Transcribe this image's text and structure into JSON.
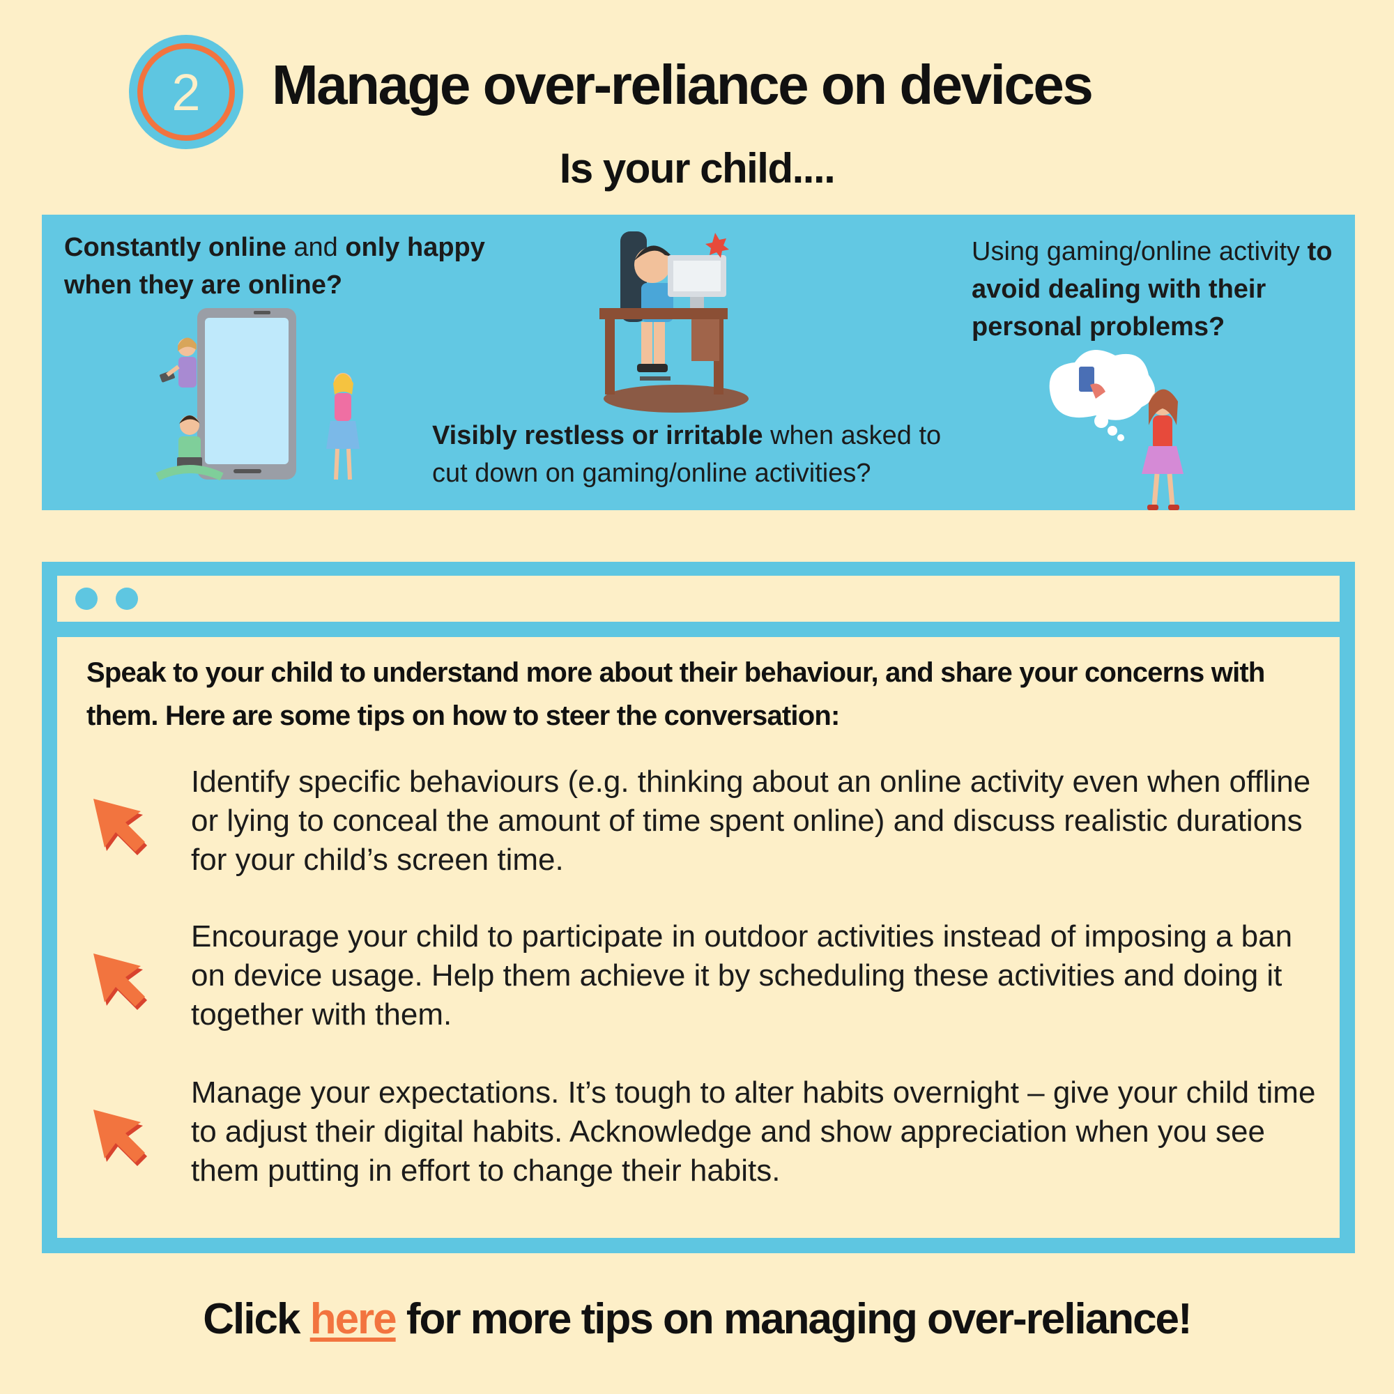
{
  "header": {
    "step_number": "2",
    "title": "Manage over-reliance on devices",
    "subtitle": "Is your child...."
  },
  "questions": [
    {
      "bold_1": "Constantly online",
      "normal_1": " and ",
      "bold_2": "only happy when they are online?",
      "normal_2": ""
    },
    {
      "bold_1": "Visibly restless or irritable",
      "normal_1": " when asked to cut down on gaming/online activities?",
      "bold_2": "",
      "normal_2": ""
    },
    {
      "bold_1": "",
      "normal_1": "Using gaming/online activity ",
      "bold_2": "to avoid dealing with their personal problems?",
      "normal_2": ""
    }
  ],
  "tips": {
    "intro": "Speak to your child to understand more about their behaviour, and share your concerns with them. Here are some tips on how to steer the conversation:",
    "items": [
      "Identify specific behaviours (e.g. thinking about an online activity even when offline or lying to conceal the amount of time spent online) and discuss realistic durations for your child’s screen time.",
      "Encourage your child to participate in outdoor activities instead of imposing a ban on device usage. Help them achieve it by scheduling these activities and doing it together with them.",
      "Manage your expectations. It’s tough to alter habits overnight – give your child time to adjust their digital habits. Acknowledge and show appreciation when you see them putting in effort to change their habits."
    ]
  },
  "footer": {
    "prefix": "Click ",
    "link_text": "here",
    "suffix": " for more tips on managing over-reliance!"
  },
  "colors": {
    "background": "#fdefc8",
    "banner_blue": "#62c8e3",
    "accent_orange": "#f2743f",
    "text": "#111111"
  },
  "icons": {
    "step_badge": "numbered-circle-icon",
    "tip_bullet": "cursor-arrow-icon"
  }
}
